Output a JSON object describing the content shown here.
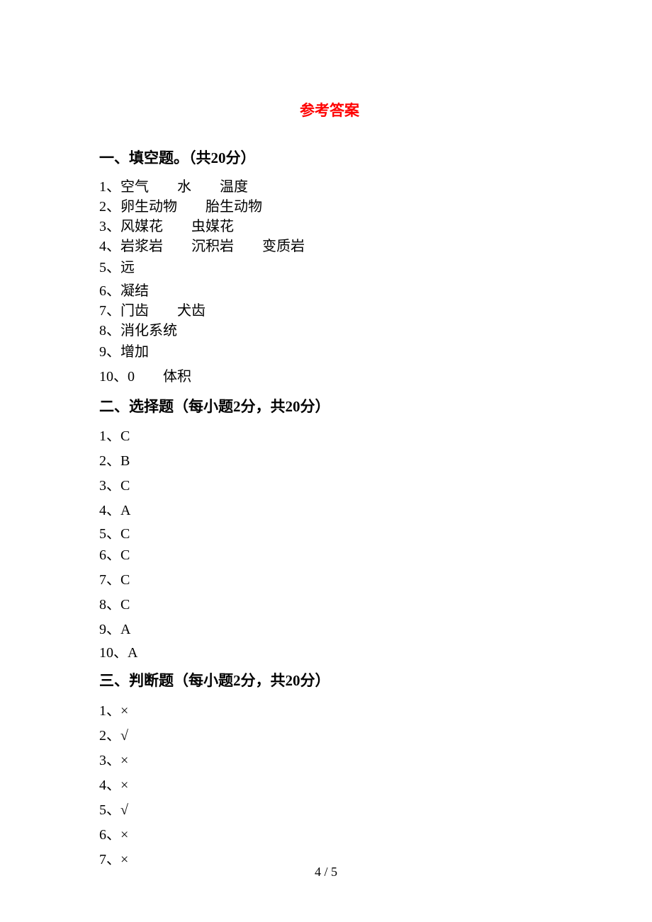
{
  "title": {
    "text": "参考答案",
    "color": "#ff0000"
  },
  "sections": {
    "fill": {
      "heading": "一、填空题。（共20分）",
      "items": [
        "1、空气　　水　　温度",
        "2、卵生动物　　胎生动物",
        "3、风媒花　　虫媒花",
        "4、岩浆岩　　沉积岩　　变质岩",
        "5、远",
        "6、凝结",
        "7、门齿　　犬齿",
        "8、消化系统",
        "9、增加",
        "10、0　　体积"
      ]
    },
    "choice": {
      "heading": "二、选择题（每小题2分，共20分）",
      "items": [
        "1、C",
        "2、B",
        "3、C",
        "4、A",
        "5、C",
        "6、C",
        "7、C",
        "8、C",
        "9、A",
        "10、A"
      ]
    },
    "judge": {
      "heading": "三、判断题（每小题2分，共20分）",
      "items": [
        "1、×",
        "2、√",
        "3、×",
        "4、×",
        "5、√",
        "6、×",
        "7、×"
      ]
    }
  },
  "page_number": "4 / 5"
}
